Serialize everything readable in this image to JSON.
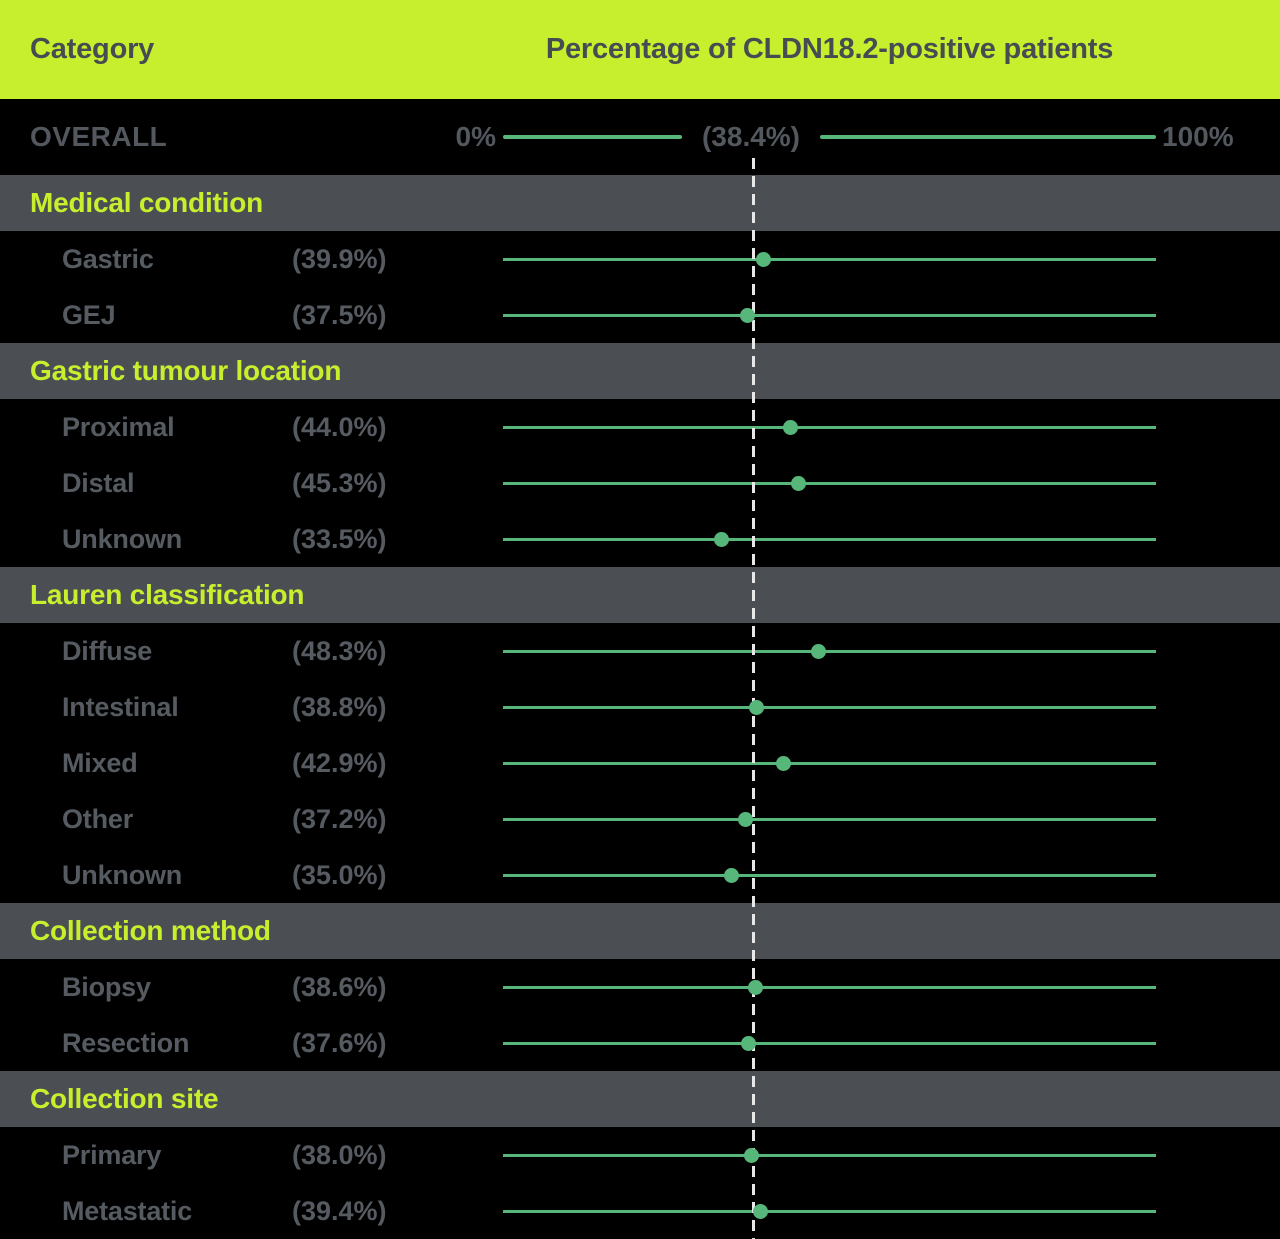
{
  "header": {
    "category_label": "Category",
    "value_label": "Percentage of CLDN18.2-positive patients"
  },
  "overall": {
    "label": "OVERALL",
    "min_tick": "0%",
    "max_tick": "100%",
    "value": 38.4,
    "display": "(38.4%)"
  },
  "sections": [
    {
      "title": "Medical condition",
      "rows": [
        {
          "label": "Gastric",
          "value": 39.9,
          "display": "(39.9%)"
        },
        {
          "label": "GEJ",
          "value": 37.5,
          "display": "(37.5%)"
        }
      ]
    },
    {
      "title": "Gastric tumour location",
      "rows": [
        {
          "label": "Proximal",
          "value": 44.0,
          "display": "(44.0%)"
        },
        {
          "label": "Distal",
          "value": 45.3,
          "display": "(45.3%)"
        },
        {
          "label": "Unknown",
          "value": 33.5,
          "display": "(33.5%)"
        }
      ]
    },
    {
      "title": "Lauren classification",
      "rows": [
        {
          "label": "Diffuse",
          "value": 48.3,
          "display": "(48.3%)"
        },
        {
          "label": "Intestinal",
          "value": 38.8,
          "display": "(38.8%)"
        },
        {
          "label": "Mixed",
          "value": 42.9,
          "display": "(42.9%)"
        },
        {
          "label": "Other",
          "value": 37.2,
          "display": "(37.2%)"
        },
        {
          "label": "Unknown",
          "value": 35.0,
          "display": "(35.0%)"
        }
      ]
    },
    {
      "title": "Collection method",
      "rows": [
        {
          "label": "Biopsy",
          "value": 38.6,
          "display": "(38.6%)"
        },
        {
          "label": "Resection",
          "value": 37.6,
          "display": "(37.6%)"
        }
      ]
    },
    {
      "title": "Collection site",
      "rows": [
        {
          "label": "Primary",
          "value": 38.0,
          "display": "(38.0%)"
        },
        {
          "label": "Metastatic",
          "value": 39.4,
          "display": "(39.4%)"
        }
      ]
    }
  ],
  "colors": {
    "header_background": "#c8ef2e",
    "section_band_background": "#4b4f54",
    "accent_green": "#57b77b",
    "dashed_reference": "#e8e8e8",
    "text_gray": "#565b62",
    "background": "#000000"
  },
  "chart_data": {
    "type": "scatter",
    "title": "Percentage of CLDN18.2-positive patients",
    "xlabel": "Percentage of CLDN18.2-positive patients",
    "xlim": [
      0,
      100
    ],
    "x_tick_labels": [
      "0%",
      "100%"
    ],
    "grid": false,
    "reference_line": {
      "label": "OVERALL",
      "value": 38.4,
      "style": "dashed"
    },
    "groups": [
      {
        "name": "Medical condition",
        "categories": [
          "Gastric",
          "GEJ"
        ],
        "values": [
          39.9,
          37.5
        ]
      },
      {
        "name": "Gastric tumour location",
        "categories": [
          "Proximal",
          "Distal",
          "Unknown"
        ],
        "values": [
          44.0,
          45.3,
          33.5
        ]
      },
      {
        "name": "Lauren classification",
        "categories": [
          "Diffuse",
          "Intestinal",
          "Mixed",
          "Other",
          "Unknown"
        ],
        "values": [
          48.3,
          38.8,
          42.9,
          37.2,
          35.0
        ]
      },
      {
        "name": "Collection method",
        "categories": [
          "Biopsy",
          "Resection"
        ],
        "values": [
          38.6,
          37.6
        ]
      },
      {
        "name": "Collection site",
        "categories": [
          "Primary",
          "Metastatic"
        ],
        "values": [
          38.0,
          39.4
        ]
      }
    ]
  }
}
